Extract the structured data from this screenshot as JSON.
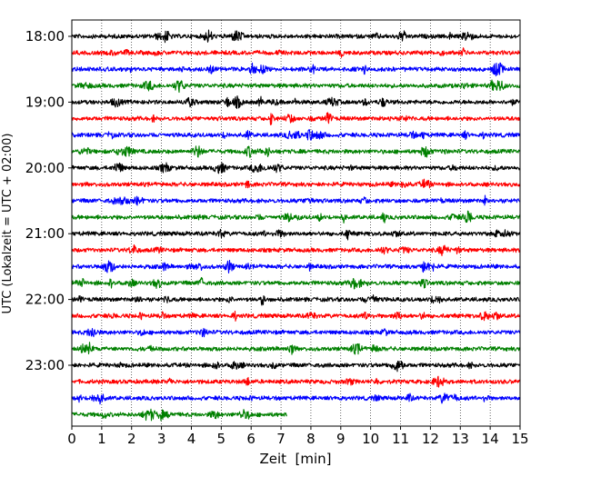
{
  "chart_data": {
    "type": "line",
    "title": "",
    "xlabel": "Zeit  [min]",
    "ylabel": "UTC (Lokalzeit = UTC + 02:00)",
    "xlim": [
      0,
      15
    ],
    "x_ticks": [
      "0",
      "1",
      "2",
      "3",
      "4",
      "5",
      "6",
      "7",
      "8",
      "9",
      "10",
      "11",
      "12",
      "13",
      "14",
      "15"
    ],
    "y_ticks": [
      {
        "label": "18:00",
        "row": 0
      },
      {
        "label": "19:00",
        "row": 4
      },
      {
        "label": "20:00",
        "row": 8
      },
      {
        "label": "21:00",
        "row": 12
      },
      {
        "label": "22:00",
        "row": 16
      },
      {
        "label": "23:00",
        "row": 20
      }
    ],
    "vertical_grid": "dotted, every minute",
    "row_minutes": 15,
    "color_cycle": [
      "#000000",
      "#ff0000",
      "#0000ff",
      "#008000"
    ],
    "rows": [
      {
        "start": "18:00",
        "color": "#000000",
        "end_minute": 15
      },
      {
        "start": "18:15",
        "color": "#ff0000",
        "end_minute": 15
      },
      {
        "start": "18:30",
        "color": "#0000ff",
        "end_minute": 15
      },
      {
        "start": "18:45",
        "color": "#008000",
        "end_minute": 15
      },
      {
        "start": "19:00",
        "color": "#000000",
        "end_minute": 15
      },
      {
        "start": "19:15",
        "color": "#ff0000",
        "end_minute": 15
      },
      {
        "start": "19:30",
        "color": "#0000ff",
        "end_minute": 15
      },
      {
        "start": "19:45",
        "color": "#008000",
        "end_minute": 15
      },
      {
        "start": "20:00",
        "color": "#000000",
        "end_minute": 15
      },
      {
        "start": "20:15",
        "color": "#ff0000",
        "end_minute": 15
      },
      {
        "start": "20:30",
        "color": "#0000ff",
        "end_minute": 15
      },
      {
        "start": "20:45",
        "color": "#008000",
        "end_minute": 15
      },
      {
        "start": "21:00",
        "color": "#000000",
        "end_minute": 15
      },
      {
        "start": "21:15",
        "color": "#ff0000",
        "end_minute": 15
      },
      {
        "start": "21:30",
        "color": "#0000ff",
        "end_minute": 15
      },
      {
        "start": "21:45",
        "color": "#008000",
        "end_minute": 15
      },
      {
        "start": "22:00",
        "color": "#000000",
        "end_minute": 15
      },
      {
        "start": "22:15",
        "color": "#ff0000",
        "end_minute": 15
      },
      {
        "start": "22:30",
        "color": "#0000ff",
        "end_minute": 15
      },
      {
        "start": "22:45",
        "color": "#008000",
        "end_minute": 15
      },
      {
        "start": "23:00",
        "color": "#000000",
        "end_minute": 15
      },
      {
        "start": "23:15",
        "color": "#ff0000",
        "end_minute": 15
      },
      {
        "start": "23:30",
        "color": "#0000ff",
        "end_minute": 15
      },
      {
        "start": "23:45",
        "color": "#008000",
        "end_minute": 7.2
      }
    ]
  }
}
